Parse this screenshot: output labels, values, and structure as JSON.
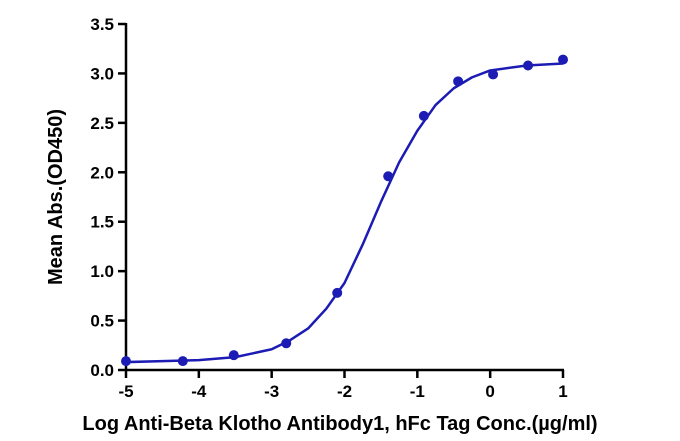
{
  "chart_data": {
    "type": "scatter",
    "x_label": "Log Anti-Beta Klotho Antibody1, hFc Tag Conc.(µg/ml)",
    "y_label": "Mean Abs.(OD450)",
    "xlim": [
      -5,
      1
    ],
    "xticks": [
      -5,
      -4,
      -3,
      -2,
      -1,
      0,
      1
    ],
    "ylim": [
      0,
      3.5
    ],
    "yticks": [
      {
        "value": 0,
        "label": "0.0"
      },
      {
        "value": 0.5,
        "label": "0.5"
      },
      {
        "value": 1,
        "label": "1.0"
      },
      {
        "value": 1.5,
        "label": "1.5"
      },
      {
        "value": 2,
        "label": "2.0"
      },
      {
        "value": 2.5,
        "label": "2.5"
      },
      {
        "value": 3,
        "label": "3.0"
      },
      {
        "value": 3.5,
        "label": "3.5"
      }
    ],
    "color": "#1c1cb4",
    "points": {
      "x": [
        -5,
        -4.22,
        -3.52,
        -2.8,
        -2.1,
        -1.4,
        -0.91,
        -0.44,
        0.04,
        0.52,
        1
      ],
      "values": [
        0.09,
        0.09,
        0.15,
        0.27,
        0.78,
        1.96,
        2.57,
        2.92,
        2.99,
        3.08,
        3.14
      ]
    },
    "fit": {
      "x": [
        -5,
        -4.5,
        -4,
        -3.5,
        -3,
        -2.75,
        -2.5,
        -2.25,
        -2,
        -1.75,
        -1.5,
        -1.25,
        -1,
        -0.75,
        -0.5,
        -0.25,
        0,
        0.5,
        1
      ],
      "values": [
        0.08,
        0.09,
        0.1,
        0.13,
        0.21,
        0.3,
        0.42,
        0.62,
        0.88,
        1.27,
        1.7,
        2.1,
        2.42,
        2.68,
        2.85,
        2.96,
        3.03,
        3.08,
        3.1
      ]
    }
  }
}
